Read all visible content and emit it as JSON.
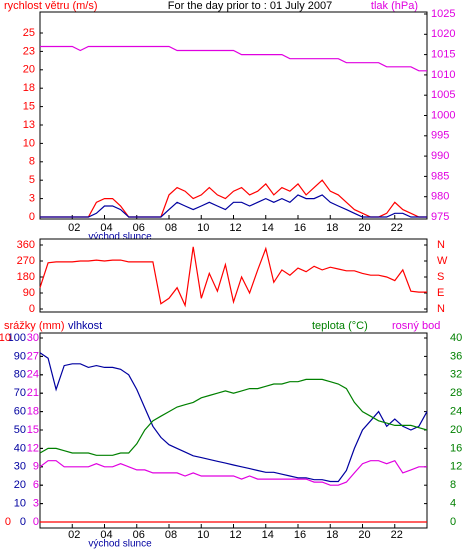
{
  "chart_data": [
    {
      "type": "line",
      "title": "For the day prior to : 01 July 2007",
      "ylabel": "rychlost větru (m/s)",
      "y2label": "tlak (hPa)",
      "annotation": "východ slunce",
      "x": [
        0,
        0.5,
        1,
        1.5,
        2,
        2.5,
        3,
        3.5,
        4,
        4.5,
        5,
        5.5,
        6,
        6.5,
        7,
        7.5,
        8,
        8.5,
        9,
        9.5,
        10,
        10.5,
        11,
        11.5,
        12,
        12.5,
        13,
        13.5,
        14,
        14.5,
        15,
        15.5,
        16,
        16.5,
        17,
        17.5,
        18,
        18.5,
        19,
        19.5,
        20,
        20.5,
        21,
        21.5,
        22,
        22.5,
        23,
        23.5,
        24
      ],
      "xlim": [
        0,
        24
      ],
      "xticks": [
        {
          "value": 2,
          "label": "02"
        },
        {
          "value": 4,
          "label": "04"
        },
        {
          "value": 6,
          "label": "06"
        },
        {
          "value": 8,
          "label": "08"
        },
        10,
        12,
        14,
        16,
        18,
        20,
        22
      ],
      "ylim": [
        0,
        25
      ],
      "yticks": [
        0,
        {
          "value": 2.5,
          "label": "3"
        },
        5,
        {
          "value": 7.5,
          "label": "8"
        },
        10,
        {
          "value": 12.5,
          "label": "13"
        },
        15,
        {
          "value": 17.5,
          "label": "18"
        },
        20,
        {
          "value": 22.5,
          "label": "23"
        },
        25
      ],
      "y2lim": [
        975,
        1025
      ],
      "y2ticks": [
        975,
        980,
        985,
        990,
        995,
        1000,
        1005,
        1010,
        1015,
        1020,
        1025
      ],
      "series": [
        {
          "color": "#ff0000",
          "values": [
            0,
            0,
            0,
            0,
            0,
            0,
            0,
            2,
            2.5,
            2.5,
            1.5,
            0,
            0,
            0,
            0,
            0,
            3,
            4,
            3.5,
            2.5,
            3,
            4,
            3,
            2.5,
            3.5,
            4,
            3,
            3.5,
            4.5,
            3,
            4,
            3.5,
            4.5,
            3,
            4,
            5,
            3.5,
            3,
            2,
            1,
            0.5,
            0,
            0,
            0.5,
            2,
            1,
            0.5,
            0,
            0
          ]
        },
        {
          "color": "#0000a0",
          "values": [
            0,
            0,
            0,
            0,
            0,
            0,
            0,
            0.5,
            1.5,
            1.5,
            1,
            0,
            0,
            0,
            0,
            0,
            1,
            2,
            1.5,
            1,
            1.5,
            2,
            1.5,
            1,
            2,
            2,
            1.5,
            2,
            2.5,
            2,
            2.5,
            2,
            3,
            2.5,
            2.5,
            3,
            2,
            1.5,
            1,
            0.5,
            0,
            0,
            0,
            0,
            0.5,
            0.5,
            0,
            0,
            0
          ]
        },
        {
          "color": "#e000e0",
          "axis": "y2",
          "values": [
            1017,
            1017,
            1017,
            1017,
            1017,
            1016,
            1017,
            1017,
            1017,
            1017,
            1017,
            1017,
            1017,
            1017,
            1017,
            1017,
            1017,
            1016,
            1016,
            1016,
            1016,
            1016,
            1016,
            1016,
            1016,
            1015,
            1015,
            1015,
            1015,
            1015,
            1015,
            1014,
            1014,
            1014,
            1014,
            1014,
            1014,
            1014,
            1013,
            1013,
            1013,
            1013,
            1013,
            1012,
            1012,
            1012,
            1012,
            1011,
            1011
          ]
        }
      ]
    },
    {
      "type": "line",
      "x": [
        0,
        0.5,
        1,
        1.5,
        2,
        2.5,
        3,
        3.5,
        4,
        4.5,
        5,
        5.5,
        6,
        6.5,
        7,
        7.5,
        8,
        8.5,
        9,
        9.5,
        10,
        10.5,
        11,
        11.5,
        12,
        12.5,
        13,
        13.5,
        14,
        14.5,
        15,
        15.5,
        16,
        16.5,
        17,
        17.5,
        18,
        18.5,
        19,
        19.5,
        20,
        20.5,
        21,
        21.5,
        22,
        22.5,
        23,
        23.5,
        24
      ],
      "xlim": [
        0,
        24
      ],
      "ylim": [
        0,
        360
      ],
      "yticks": [
        0,
        90,
        180,
        270,
        360
      ],
      "y2lim": [
        0,
        360
      ],
      "y2ticks": [
        {
          "value": 0,
          "label": "N"
        },
        {
          "value": 90,
          "label": "E"
        },
        {
          "value": 180,
          "label": "S"
        },
        {
          "value": 270,
          "label": "W"
        },
        {
          "value": 360,
          "label": "N"
        }
      ],
      "series": [
        {
          "color": "#ff0000",
          "values": [
            120,
            260,
            265,
            265,
            265,
            270,
            270,
            275,
            270,
            275,
            275,
            265,
            265,
            265,
            265,
            30,
            60,
            120,
            20,
            350,
            60,
            200,
            100,
            250,
            40,
            180,
            90,
            220,
            340,
            150,
            220,
            190,
            230,
            210,
            240,
            220,
            235,
            225,
            215,
            215,
            200,
            190,
            190,
            180,
            160,
            220,
            100,
            95,
            95
          ]
        }
      ]
    },
    {
      "type": "line",
      "annotation": "východ slunce",
      "x": [
        0,
        0.5,
        1,
        1.5,
        2,
        2.5,
        3,
        3.5,
        4,
        4.5,
        5,
        5.5,
        6,
        6.5,
        7,
        7.5,
        8,
        8.5,
        9,
        9.5,
        10,
        10.5,
        11,
        11.5,
        12,
        12.5,
        13,
        13.5,
        14,
        14.5,
        15,
        15.5,
        16,
        16.5,
        17,
        17.5,
        18,
        18.5,
        19,
        19.5,
        20,
        20.5,
        21,
        21.5,
        22,
        22.5,
        23,
        23.5,
        24
      ],
      "xlim": [
        0,
        24
      ],
      "xticks": [
        {
          "value": 2,
          "label": "02"
        },
        {
          "value": 4,
          "label": "04"
        },
        {
          "value": 6,
          "label": "06"
        },
        {
          "value": 8,
          "label": "08"
        },
        10,
        12,
        14,
        16,
        18,
        20,
        22
      ],
      "ylim": [
        0,
        100
      ],
      "yticks": [
        0,
        10,
        20,
        30,
        40,
        50,
        60,
        70,
        80,
        90,
        100
      ],
      "y2lim": [
        0,
        40
      ],
      "y2ticks": [
        0,
        4,
        8,
        12,
        16,
        20,
        24,
        28,
        32,
        36,
        40
      ],
      "y3lim": [
        0,
        30
      ],
      "y3ticks": [
        0,
        3,
        6,
        9,
        12,
        15,
        18,
        21,
        24,
        27,
        30
      ],
      "y4lim": [
        0,
        10
      ],
      "y4ticks": [
        0,
        10
      ],
      "series": [
        {
          "name": "srážky (mm)",
          "color": "#ff0000",
          "axis": "y4",
          "values": [
            0,
            0,
            0,
            0,
            0,
            0,
            0,
            0,
            0,
            0,
            0,
            0,
            0,
            0,
            0,
            0,
            0,
            0,
            0,
            0,
            0,
            0,
            0,
            0,
            0,
            0,
            0,
            0,
            0,
            0,
            0,
            0,
            0,
            0,
            0,
            0,
            0,
            0,
            0,
            0,
            0,
            0,
            0,
            0,
            0,
            0,
            0,
            0,
            0
          ]
        },
        {
          "name": "vlhkost",
          "color": "#0000a0",
          "values": [
            92,
            89,
            72,
            85,
            86,
            86,
            84,
            85,
            84,
            84,
            83,
            80,
            72,
            62,
            52,
            46,
            42,
            40,
            38,
            36,
            35,
            34,
            33,
            32,
            31,
            30,
            29,
            28,
            27,
            27,
            26,
            25,
            24,
            24,
            23,
            23,
            22,
            22,
            28,
            40,
            50,
            55,
            60,
            52,
            56,
            52,
            50,
            52,
            60
          ]
        },
        {
          "name": "teplota (°C)",
          "color": "#008000",
          "axis": "y2",
          "values": [
            15,
            16,
            16,
            15.5,
            15,
            15,
            15,
            14.5,
            14.5,
            14.5,
            15,
            15,
            17,
            20,
            22,
            23,
            24,
            25,
            25.5,
            26,
            27,
            27.5,
            28,
            28.5,
            28,
            28.5,
            29,
            29,
            29.5,
            30,
            30,
            30.5,
            30.5,
            31,
            31,
            31,
            30.5,
            30,
            29,
            26,
            24,
            23,
            22,
            21.5,
            21,
            21,
            21,
            20.5,
            20
          ]
        },
        {
          "name": "rosný bod",
          "color": "#e000e0",
          "axis": "y3",
          "values": [
            9,
            10,
            10,
            9,
            9,
            9,
            9,
            9.5,
            9,
            9,
            9.5,
            9,
            8.5,
            8.5,
            8,
            8,
            8,
            8,
            7.5,
            8,
            7.5,
            7.5,
            7.5,
            7.5,
            7.5,
            7,
            7.5,
            7,
            7,
            7,
            7,
            7,
            7,
            7,
            6.5,
            6.5,
            6,
            6,
            6.5,
            8,
            9.5,
            10,
            10,
            9.5,
            10,
            8,
            8.5,
            9,
            9
          ]
        }
      ]
    }
  ]
}
